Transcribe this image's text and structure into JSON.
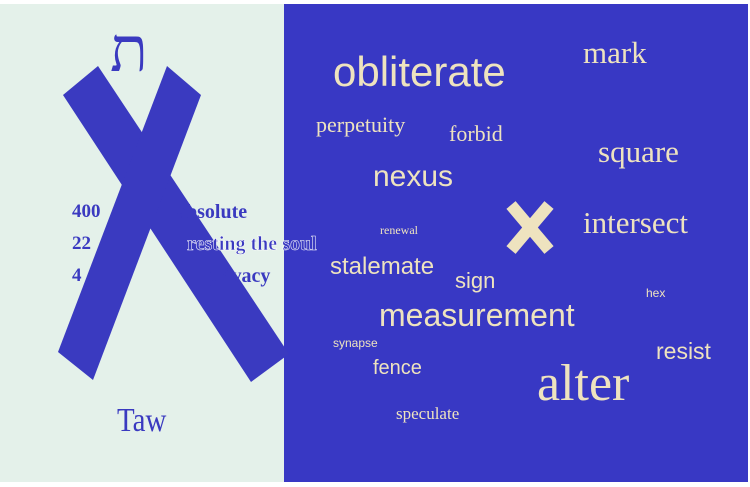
{
  "letter": {
    "glyph": "ת",
    "name": "Taw",
    "values": [
      "400",
      "22",
      "4"
    ],
    "meanings": [
      "absolute",
      "resting the soul",
      "privacy"
    ]
  },
  "word_cloud": {
    "words": [
      "obliterate",
      "mark",
      "perpetuity",
      "forbid",
      "square",
      "nexus",
      "renewal",
      "intersect",
      "stalemate",
      "sign",
      "hex",
      "measurement",
      "synapse",
      "resist",
      "fence",
      "alter",
      "speculate"
    ]
  },
  "colors": {
    "left_background": "#e4f1ea",
    "right_background": "#3838c4",
    "accent_blue": "#3a3ac0",
    "word_cream": "#eee3bf"
  }
}
